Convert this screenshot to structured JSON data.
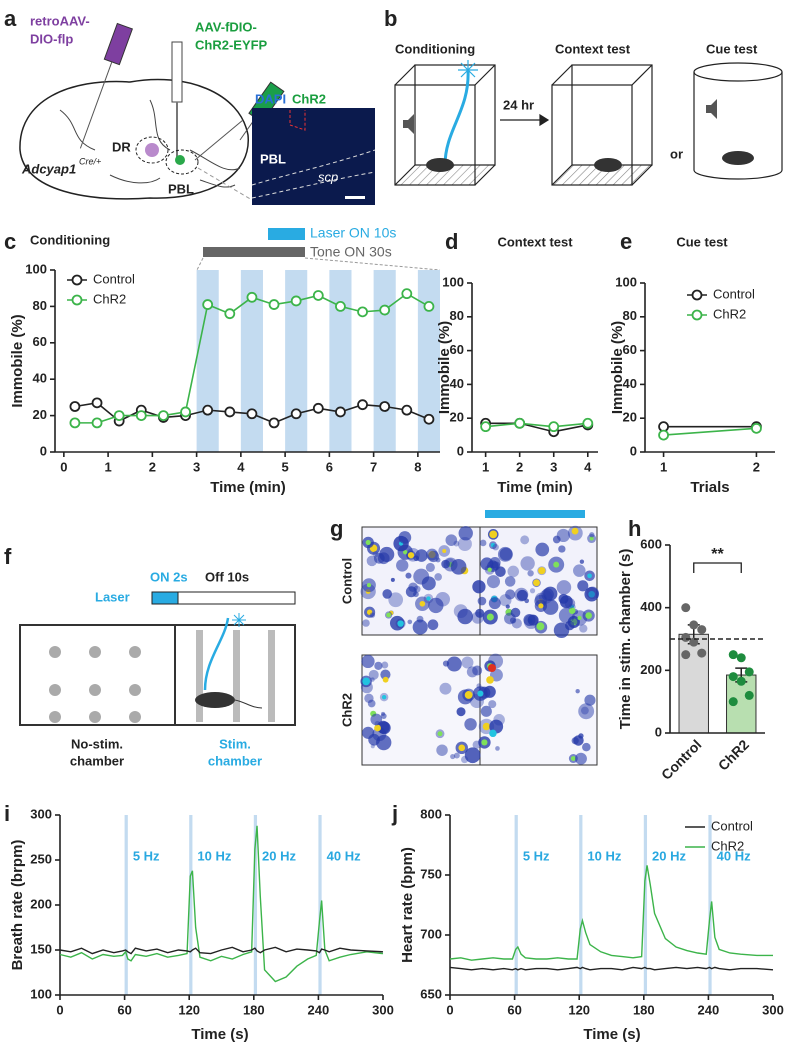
{
  "panel_labels": [
    "a",
    "b",
    "c",
    "d",
    "e",
    "f",
    "g",
    "h",
    "i",
    "j"
  ],
  "panel_a": {
    "syringe_left": [
      "retroAAV-",
      "DIO-flp"
    ],
    "syringe_right": [
      "AAV-fDIO-",
      "ChR2-EYFP"
    ],
    "region_dr": "DR",
    "region_pbl": "PBL",
    "gene": "Adcyap1",
    "genotype": "Cre/+",
    "inset_stain_1": "DAPI",
    "inset_stain_2": "ChR2",
    "inset_pbl": "PBL",
    "inset_scp": "scp"
  },
  "panel_b": {
    "steps": [
      "Conditioning",
      "Context test",
      "Cue test"
    ],
    "delay": "24 hr",
    "or": "or"
  },
  "panel_f": {
    "laser": "Laser",
    "on": "ON 2s",
    "off": "Off 10s",
    "no_stim": [
      "No-stim.",
      "chamber"
    ],
    "stim": [
      "Stim.",
      "chamber"
    ]
  },
  "panel_g": {
    "rows": [
      "Control",
      "ChR2"
    ]
  },
  "chart_data": [
    {
      "type": "line",
      "title": "Conditioning",
      "x_label": "Time (min)",
      "y_label": "Immobile (%)",
      "x": [
        0.25,
        0.75,
        1.25,
        1.75,
        2.25,
        2.75,
        3.25,
        3.75,
        4.25,
        4.75,
        5.25,
        5.75,
        6.25,
        6.75,
        7.25,
        7.75,
        8.25
      ],
      "series": [
        {
          "name": "Control",
          "color": "#222222",
          "values": [
            25,
            27,
            17,
            23,
            19,
            20,
            23,
            22,
            21,
            16,
            21,
            24,
            22,
            26,
            25,
            23,
            18
          ]
        },
        {
          "name": "ChR2",
          "color": "#3cb44a",
          "values": [
            16,
            16,
            20,
            20,
            20,
            22,
            81,
            76,
            85,
            81,
            83,
            86,
            80,
            77,
            78,
            87,
            80
          ]
        }
      ],
      "xlim": [
        -0.2,
        8.5
      ],
      "xticks": [
        0,
        1,
        2,
        3,
        4,
        5,
        6,
        7,
        8
      ],
      "ylim": [
        0,
        100
      ],
      "yticks": [
        0,
        20,
        40,
        60,
        80,
        100
      ],
      "markers": "circle",
      "legend": "upper left",
      "shaded_regions": [
        [
          3,
          3.5
        ],
        [
          4,
          4.5
        ],
        [
          5,
          5.5
        ],
        [
          6,
          6.5
        ],
        [
          7,
          7.5
        ],
        [
          8,
          8.5
        ]
      ],
      "shade_color": "#c3dbf0",
      "annotations": [
        {
          "text": "Laser ON 10s",
          "color": "#29abe2"
        },
        {
          "text": "Tone ON 30s",
          "color": "#666666"
        }
      ]
    },
    {
      "type": "line",
      "title": "Context test",
      "x_label": "Time (min)",
      "y_label": "Immobile (%)",
      "x": [
        1,
        2,
        3,
        4
      ],
      "series": [
        {
          "color": "#222222",
          "values": [
            17,
            17,
            12,
            16
          ]
        },
        {
          "color": "#3cb44a",
          "values": [
            15,
            17,
            15,
            17
          ]
        }
      ],
      "xlim": [
        0.6,
        4.3
      ],
      "xticks": [
        1,
        2,
        3,
        4
      ],
      "ylim": [
        0,
        100
      ],
      "yticks": [
        0,
        20,
        40,
        60,
        80,
        100
      ],
      "markers": "circle"
    },
    {
      "type": "line",
      "title": "Cue test",
      "x_label": "Trials",
      "y_label": "Immobile (%)",
      "x": [
        1,
        2
      ],
      "series": [
        {
          "name": "Control",
          "color": "#222222",
          "values": [
            15,
            15
          ]
        },
        {
          "name": "ChR2",
          "color": "#3cb44a",
          "values": [
            10,
            14
          ]
        }
      ],
      "xlim": [
        0.8,
        2.2
      ],
      "xticks": [
        1,
        2
      ],
      "ylim": [
        0,
        100
      ],
      "yticks": [
        0,
        20,
        40,
        60,
        80,
        100
      ],
      "markers": "circle",
      "legend": "upper right"
    },
    {
      "type": "bar",
      "y_label": "Time in stim. chamber (s)",
      "categories": [
        "Control",
        "ChR2"
      ],
      "values": [
        315,
        185
      ],
      "errors": [
        30,
        22
      ],
      "colors": [
        "#d9d9d9",
        "#b8dfb0"
      ],
      "points": [
        [
          400,
          345,
          330,
          305,
          290,
          255,
          250
        ],
        [
          250,
          240,
          195,
          180,
          165,
          120,
          100
        ]
      ],
      "point_colors": [
        "#666666",
        "#1e8c3e"
      ],
      "reference_line": 300,
      "significance": "**",
      "ylim": [
        0,
        600
      ],
      "yticks": [
        0,
        200,
        400,
        600
      ]
    },
    {
      "type": "line",
      "x_label": "Time (s)",
      "y_label": "Breath rate (brpm)",
      "x": [
        0,
        10,
        20,
        30,
        40,
        50,
        58,
        61,
        63,
        66,
        70,
        80,
        90,
        100,
        110,
        118,
        121,
        123,
        126,
        130,
        140,
        150,
        160,
        170,
        178,
        181,
        183,
        186,
        190,
        200,
        210,
        220,
        230,
        238,
        241,
        243,
        246,
        250,
        260,
        270,
        285,
        300
      ],
      "series": [
        {
          "color": "#3cb44a",
          "values": [
            145,
            142,
            147,
            140,
            145,
            143,
            144,
            148,
            140,
            138,
            145,
            143,
            146,
            142,
            144,
            146,
            232,
            238,
            175,
            142,
            138,
            143,
            140,
            145,
            148,
            262,
            288,
            210,
            128,
            115,
            120,
            132,
            140,
            144,
            182,
            205,
            150,
            138,
            142,
            145,
            148,
            146
          ]
        },
        {
          "color": "#222222",
          "values": [
            150,
            148,
            152,
            146,
            150,
            147,
            149,
            150,
            148,
            146,
            152,
            149,
            151,
            147,
            150,
            149,
            148,
            150,
            152,
            147,
            146,
            150,
            153,
            148,
            150,
            152,
            149,
            147,
            150,
            153,
            148,
            151,
            150,
            149,
            147,
            151,
            150,
            148,
            152,
            150,
            149,
            148
          ]
        }
      ],
      "xlim": [
        0,
        300
      ],
      "xticks": [
        0,
        60,
        120,
        180,
        240,
        300
      ],
      "ylim": [
        100,
        300
      ],
      "yticks": [
        100,
        150,
        200,
        250,
        300
      ],
      "shaded_regions": [
        [
          60,
          63
        ],
        [
          120,
          123
        ],
        [
          180,
          183
        ],
        [
          240,
          243
        ]
      ],
      "shade_color": "#c3dbf0",
      "stim_labels": [
        "5 Hz",
        "10 Hz",
        "20 Hz",
        "40 Hz"
      ],
      "stim_label_color": "#29a8e0"
    },
    {
      "type": "line",
      "x_label": "Time (s)",
      "y_label": "Heart rate (bpm)",
      "x": [
        0,
        10,
        20,
        30,
        40,
        50,
        58,
        61,
        63,
        66,
        70,
        80,
        90,
        100,
        110,
        118,
        121,
        123,
        126,
        130,
        140,
        150,
        160,
        170,
        178,
        181,
        183,
        186,
        190,
        200,
        210,
        220,
        230,
        238,
        241,
        243,
        246,
        250,
        260,
        270,
        285,
        300
      ],
      "series": [
        {
          "name": "Control",
          "color": "#222222",
          "values": [
            673,
            672,
            671,
            672,
            671,
            672,
            671,
            672,
            671,
            672,
            671,
            672,
            672,
            671,
            672,
            673,
            672,
            673,
            672,
            671,
            672,
            672,
            671,
            673,
            672,
            673,
            672,
            672,
            671,
            672,
            673,
            672,
            673,
            672,
            673,
            672,
            673,
            672,
            671,
            672,
            672,
            671
          ]
        },
        {
          "name": "ChR2",
          "color": "#3cb44a",
          "values": [
            680,
            681,
            679,
            680,
            681,
            680,
            680,
            688,
            690,
            684,
            681,
            680,
            680,
            681,
            680,
            680,
            705,
            712,
            702,
            692,
            686,
            683,
            682,
            681,
            682,
            745,
            758,
            742,
            718,
            697,
            690,
            687,
            685,
            684,
            712,
            728,
            698,
            688,
            685,
            684,
            683,
            683
          ]
        }
      ],
      "xlim": [
        0,
        300
      ],
      "xticks": [
        0,
        60,
        120,
        180,
        240,
        300
      ],
      "ylim": [
        650,
        800
      ],
      "yticks": [
        650,
        700,
        750,
        800
      ],
      "shaded_regions": [
        [
          60,
          63
        ],
        [
          120,
          123
        ],
        [
          180,
          183
        ],
        [
          240,
          243
        ]
      ],
      "shade_color": "#c3dbf0",
      "stim_labels": [
        "5 Hz",
        "10 Hz",
        "20 Hz",
        "40 Hz"
      ],
      "stim_label_color": "#29a8e0",
      "legend": "upper right"
    }
  ]
}
